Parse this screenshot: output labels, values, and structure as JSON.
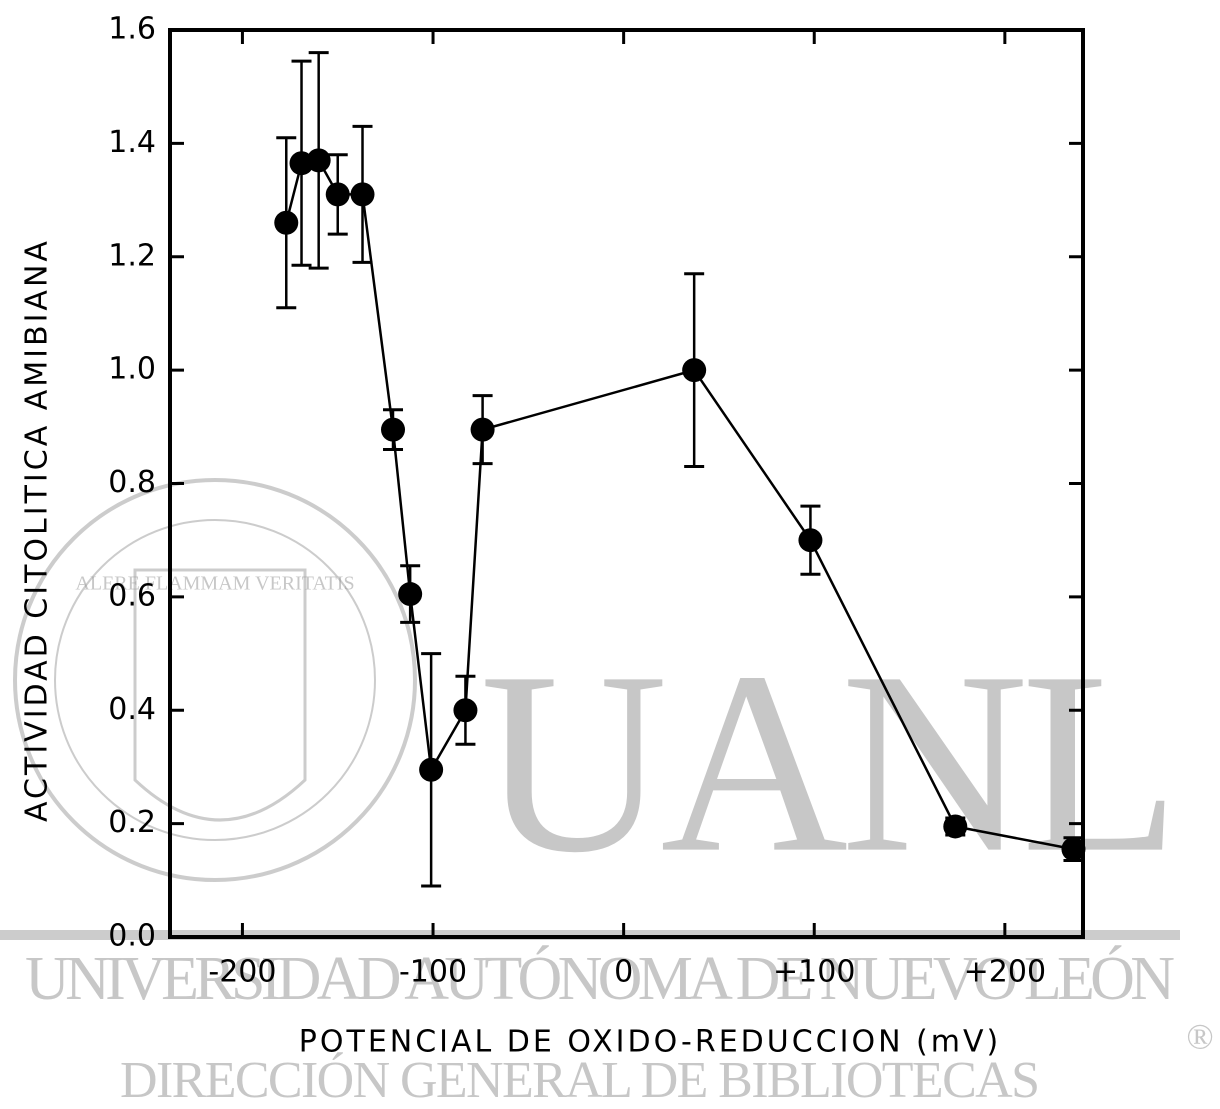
{
  "chart_data": {
    "type": "line",
    "xlabel": "POTENCIAL DE OXIDO-REDUCCION (mV)",
    "ylabel": "ACTIVIDAD CITOLITICA AMIBIANA",
    "x": [
      -177,
      -169,
      -160,
      -150,
      -137,
      -121,
      -112,
      -101,
      -83,
      -74,
      37,
      98,
      174,
      236
    ],
    "values": [
      1.26,
      1.365,
      1.37,
      1.31,
      1.31,
      0.895,
      0.605,
      0.295,
      0.4,
      0.895,
      1.0,
      0.7,
      0.195,
      0.155
    ],
    "errors": [
      0.15,
      0.18,
      0.19,
      0.07,
      0.12,
      0.035,
      0.05,
      0.205,
      0.06,
      0.06,
      0.17,
      0.06,
      0.015,
      0.02
    ],
    "color": "#000000",
    "xlim": [
      -238,
      241
    ],
    "xticks": [
      -200,
      -100,
      0,
      {
        "value": 100,
        "label": "+100"
      },
      {
        "value": 200,
        "label": "+200"
      }
    ],
    "ylim": [
      0,
      1.6
    ],
    "yticks": [
      {
        "value": 0,
        "label": "0.0"
      },
      0.2,
      0.4,
      0.6,
      0.8,
      {
        "value": 1,
        "label": "1.0"
      },
      1.2,
      1.4,
      1.6
    ],
    "grid": false
  },
  "watermark": {
    "logo": "UANL",
    "university": "UNIVERSIDAD AUTÓNOMA DE NUEVO LEÓN",
    "department": "DIRECCIÓN GENERAL DE BIBLIOTECAS",
    "mark": "®",
    "motto": "ALERE FLAMMAM VERITATIS"
  }
}
